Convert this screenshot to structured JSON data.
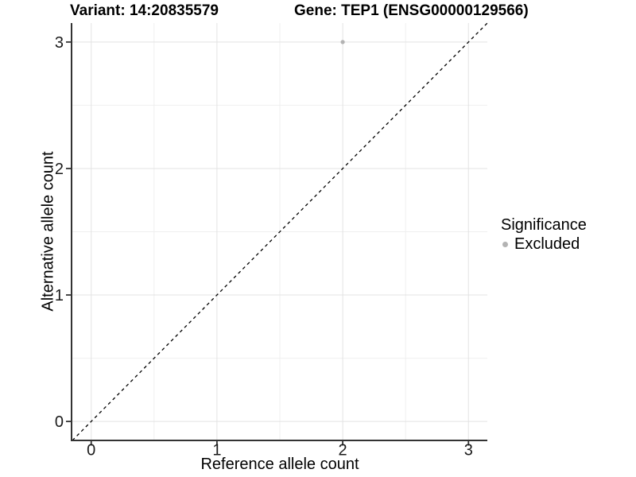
{
  "titles": {
    "left": "Variant: 14:20835579",
    "right": "Gene: TEP1 (ENSG00000129566)"
  },
  "chart_data": {
    "type": "scatter",
    "xlabel": "Reference allele count",
    "ylabel": "Alternative allele count",
    "xlim": [
      -0.15,
      3.15
    ],
    "ylim": [
      -0.15,
      3.15
    ],
    "x_ticks": [
      0,
      1,
      2,
      3
    ],
    "y_ticks": [
      0,
      1,
      2,
      3
    ],
    "x_minor_gridlines": [
      0.5,
      1.5,
      2.5
    ],
    "y_minor_gridlines": [
      0.5,
      1.5,
      2.5
    ],
    "grid": "major+minor",
    "points": [
      {
        "x": 2,
        "y": 3,
        "significance": "Excluded"
      }
    ],
    "reference_line": {
      "style": "dashed",
      "slope": 1,
      "intercept": 0
    },
    "legend": {
      "title": "Significance",
      "position": "right",
      "entries": [
        {
          "label": "Excluded",
          "color": "#b3b3b3"
        }
      ]
    },
    "colors": {
      "point": "#b3b3b3",
      "grid_major": "#e3e3e3",
      "grid_minor": "#efefef",
      "axis": "#333333",
      "reference_line": "#000000",
      "tick_text": "#1a1a1a"
    }
  }
}
